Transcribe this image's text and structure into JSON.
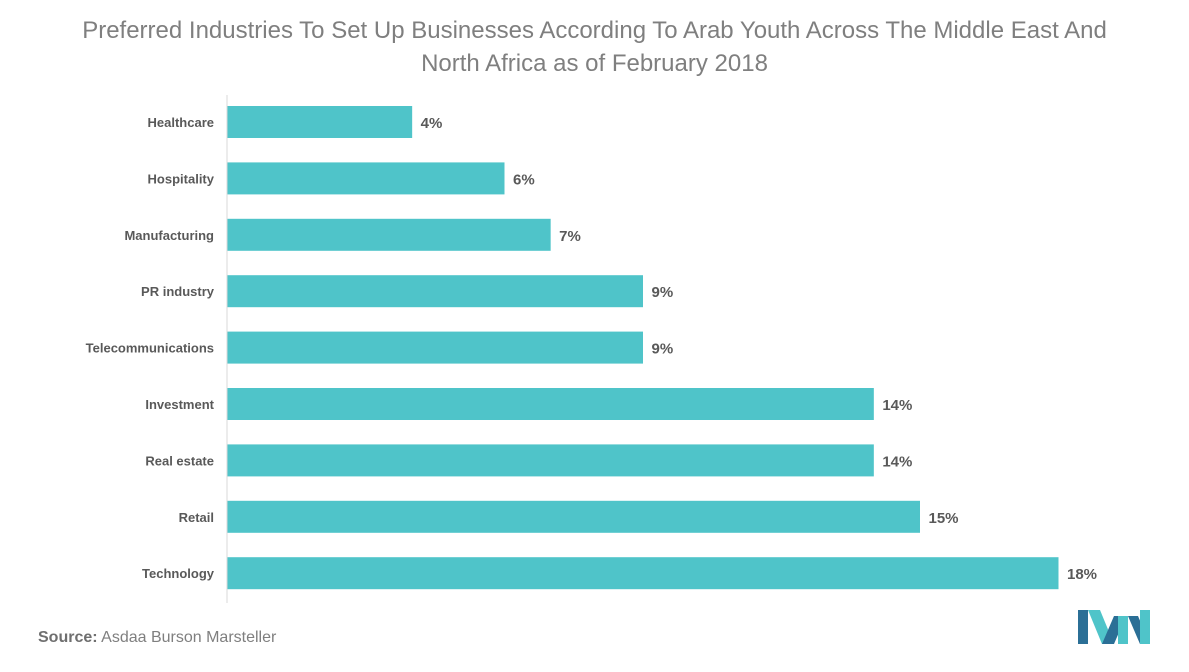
{
  "title_line1": "Preferred Industries To Set Up Businesses According To Arab Youth Across The Middle East And",
  "title_line2": "North Africa as of February 2018",
  "source_label": "Source:",
  "source_text": "Asdaa Burson Marsteller",
  "colors": {
    "bar": "#4fc4c9",
    "label": "#595959",
    "title": "#7f7f7f",
    "axis": "#d9d9d9"
  },
  "chart_data": {
    "type": "bar",
    "orientation": "horizontal",
    "title": "Preferred Industries To Set Up Businesses According To Arab Youth Across The Middle East And North Africa as of February 2018",
    "categories": [
      "Healthcare",
      "Hospitality",
      "Manufacturing",
      "PR industry",
      "Telecommunications",
      "Investment",
      "Real estate",
      "Retail",
      "Technology"
    ],
    "values": [
      4,
      6,
      7,
      9,
      9,
      14,
      14,
      15,
      18
    ],
    "data_labels": [
      "4%",
      "6%",
      "7%",
      "9%",
      "9%",
      "14%",
      "14%",
      "15%",
      "18%"
    ],
    "unit": "%",
    "xlim": [
      0,
      18
    ],
    "grid": false,
    "legend": "none"
  }
}
